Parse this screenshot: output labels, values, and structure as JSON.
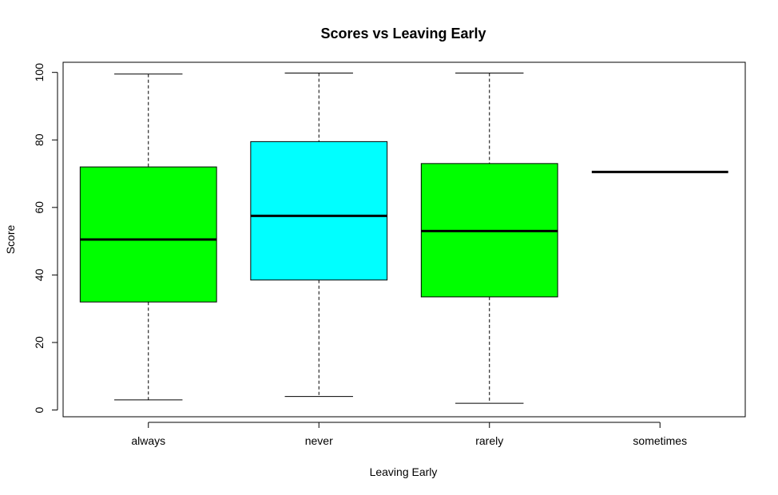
{
  "chart_data": {
    "type": "boxplot",
    "title": "Scores vs Leaving Early",
    "xlabel": "Leaving Early",
    "ylabel": "Score",
    "ylim": [
      -2,
      103
    ],
    "yticks": [
      0,
      20,
      40,
      60,
      80,
      100
    ],
    "categories": [
      "always",
      "never",
      "rarely",
      "sometimes"
    ],
    "boxes": [
      {
        "category": "always",
        "min": 3,
        "q1": 32,
        "median": 50.5,
        "q3": 72,
        "max": 99.5,
        "color": "#00ff00"
      },
      {
        "category": "never",
        "min": 4,
        "q1": 38.5,
        "median": 57.5,
        "q3": 79.5,
        "max": 99.8,
        "color": "#00ffff"
      },
      {
        "category": "rarely",
        "min": 2,
        "q1": 33.5,
        "median": 53,
        "q3": 73,
        "max": 99.8,
        "color": "#00ff00"
      },
      {
        "category": "sometimes",
        "min": 70.5,
        "q1": 70.5,
        "median": 70.5,
        "q3": 70.5,
        "max": 70.5,
        "color": "#00ffff"
      }
    ],
    "grid": false
  }
}
